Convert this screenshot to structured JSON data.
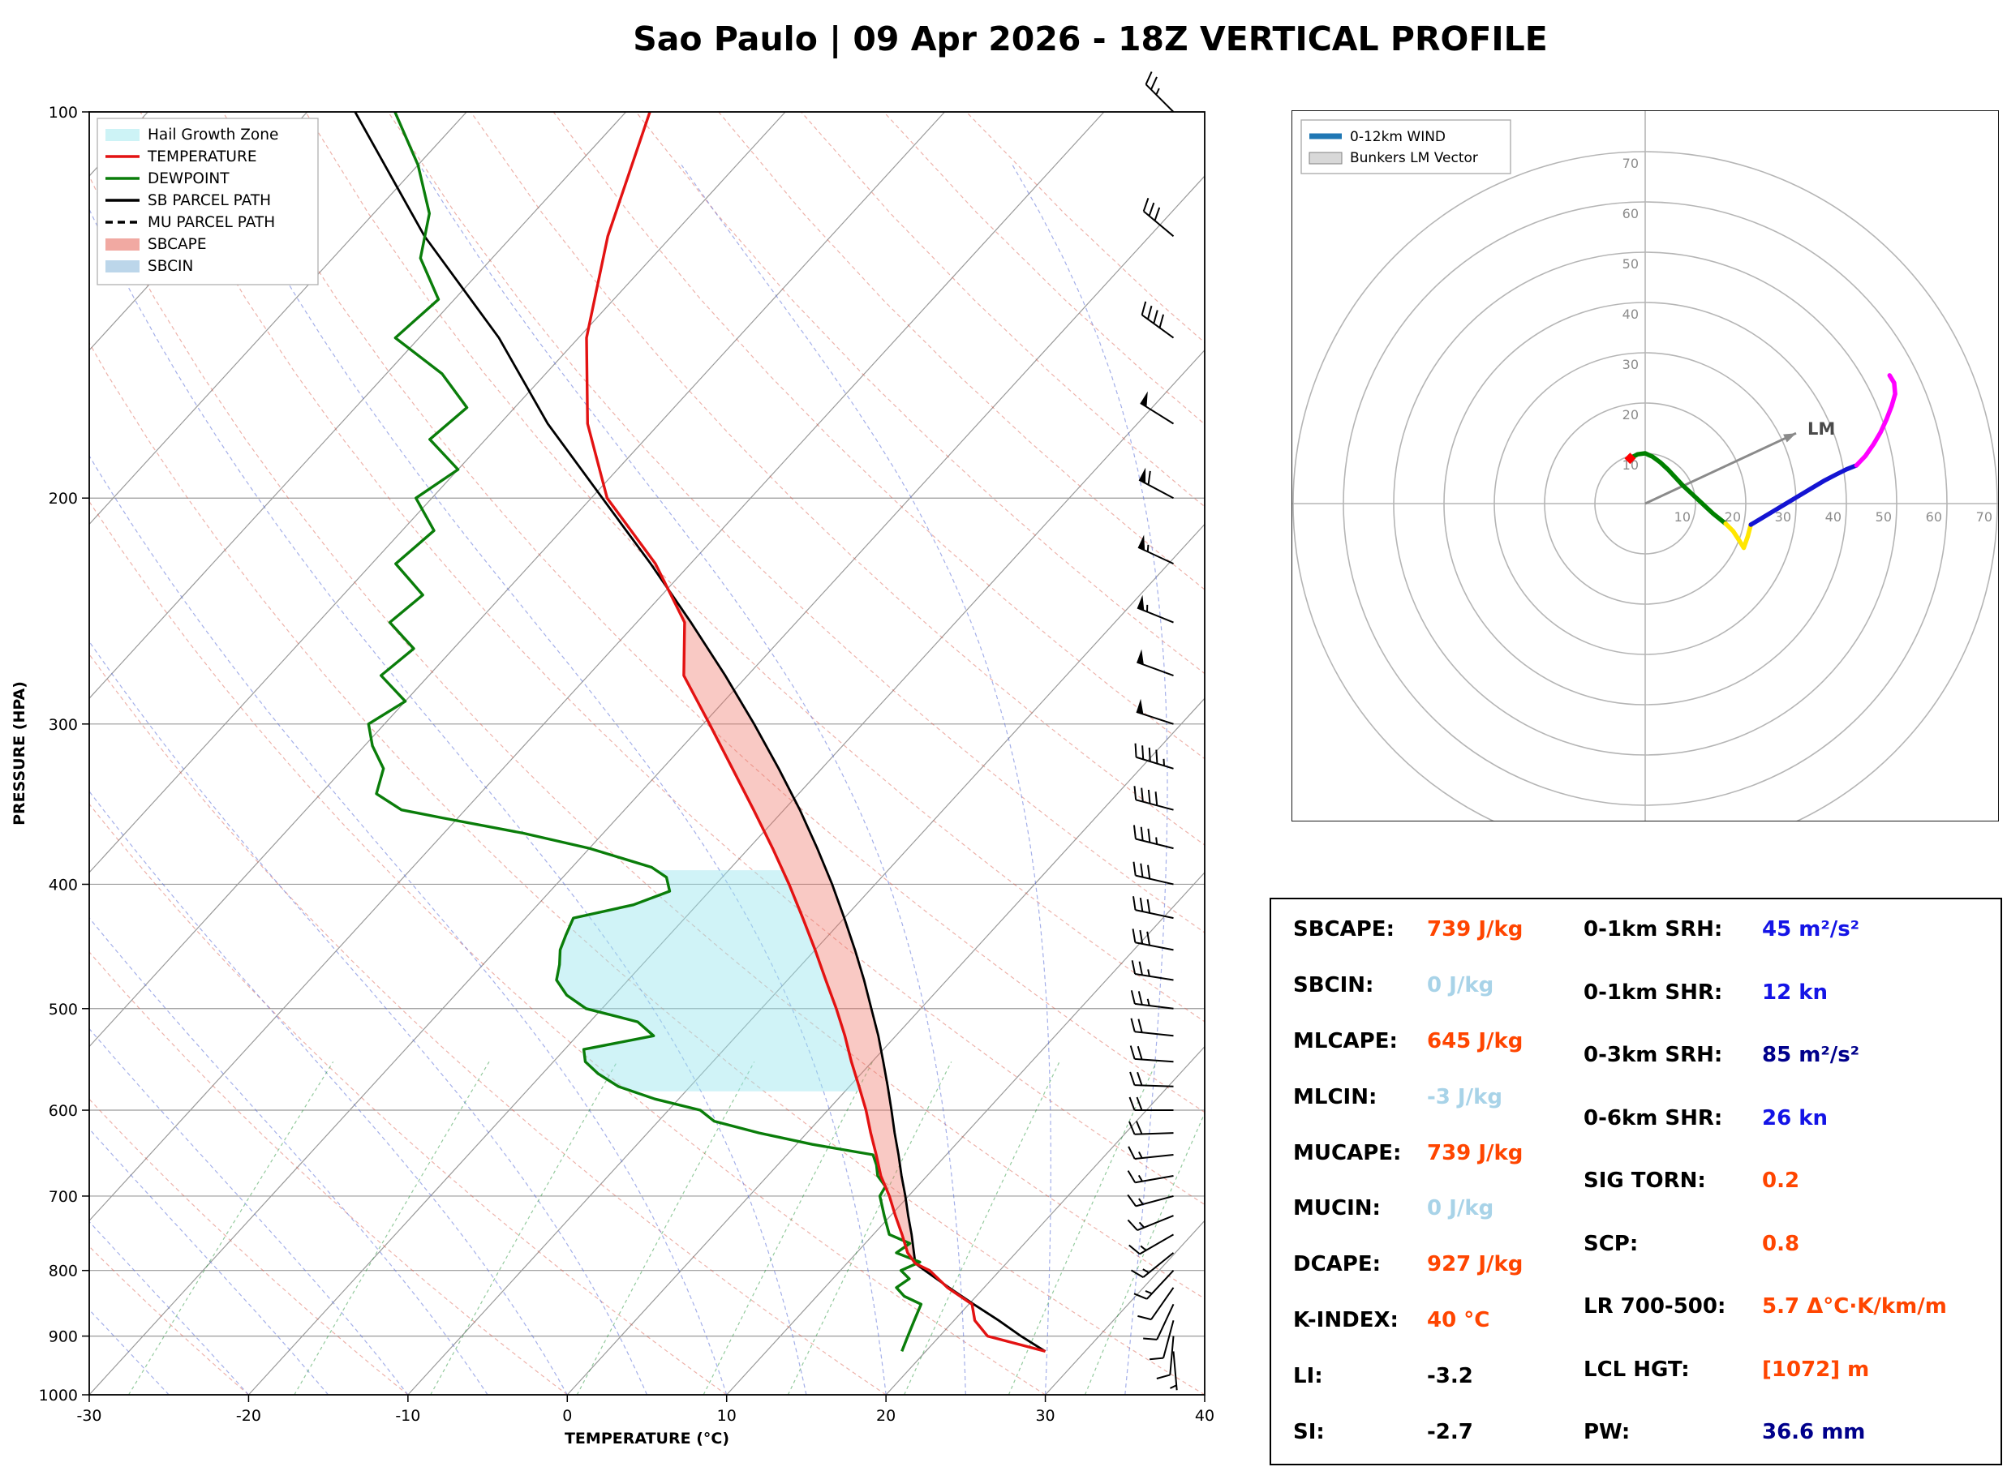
{
  "title": "Sao Paulo | 09 Apr 2026 - 18Z VERTICAL PROFILE",
  "skewt": {
    "xlabel": "TEMPERATURE (°C)",
    "ylabel": "PRESSURE (HPA)",
    "x_ticks": [
      -30,
      -20,
      -10,
      0,
      10,
      20,
      30,
      40
    ],
    "y_ticks": [
      100,
      200,
      300,
      400,
      500,
      600,
      700,
      800,
      900,
      1000
    ],
    "legend": [
      {
        "label": "Hail Growth Zone",
        "type": "patch",
        "color": "#cdf3f6"
      },
      {
        "label": "TEMPERATURE",
        "type": "line",
        "color": "#e31212"
      },
      {
        "label": "DEWPOINT",
        "type": "line",
        "color": "#0a7d0a"
      },
      {
        "label": "SB PARCEL PATH",
        "type": "line",
        "color": "#000000"
      },
      {
        "label": "MU PARCEL PATH",
        "type": "dashed",
        "color": "#000000"
      },
      {
        "label": "SBCAPE",
        "type": "patch",
        "color": "#f1a9a2"
      },
      {
        "label": "SBCIN",
        "type": "patch",
        "color": "#bcd6ea"
      }
    ]
  },
  "hodograph": {
    "legend": [
      {
        "label": "0-12km WIND",
        "type": "line",
        "color": "#1f77b4"
      },
      {
        "label": "Bunkers LM Vector",
        "type": "patch",
        "color": "#d8d8d8"
      }
    ],
    "ring_labels": [
      10,
      20,
      30,
      40,
      50,
      60,
      70
    ],
    "lm_label": "LM"
  },
  "stats": {
    "left": [
      {
        "label": "SBCAPE:",
        "value": "739 J/kg",
        "color": "#ff4500"
      },
      {
        "label": "SBCIN:",
        "value": "0 J/kg",
        "color": "#a8d3e8"
      },
      {
        "label": "MLCAPE:",
        "value": "645 J/kg",
        "color": "#ff4500"
      },
      {
        "label": "MLCIN:",
        "value": "-3 J/kg",
        "color": "#a8d3e8"
      },
      {
        "label": "MUCAPE:",
        "value": "739 J/kg",
        "color": "#ff4500"
      },
      {
        "label": "MUCIN:",
        "value": "0 J/kg",
        "color": "#a8d3e8"
      },
      {
        "label": "DCAPE:",
        "value": "927 J/kg",
        "color": "#ff4500"
      },
      {
        "label": "K-INDEX:",
        "value": "40 °C",
        "color": "#ff4500"
      },
      {
        "label": "LI:",
        "value": "-3.2",
        "color": "#000000"
      },
      {
        "label": "SI:",
        "value": "-2.7",
        "color": "#000000"
      }
    ],
    "right": [
      {
        "label": "0-1km SRH:",
        "value": "45 m²/s²",
        "color": "#1414e6"
      },
      {
        "label": "0-1km SHR:",
        "value": "12 kn",
        "color": "#1414e6"
      },
      {
        "label": "0-3km SRH:",
        "value": "85 m²/s²",
        "color": "#00008b"
      },
      {
        "label": "0-6km SHR:",
        "value": "26 kn",
        "color": "#1414e6"
      },
      {
        "label": "SIG TORN:",
        "value": "0.2",
        "color": "#ff4500"
      },
      {
        "label": "SCP:",
        "value": "0.8",
        "color": "#ff4500"
      },
      {
        "label": "LR 700-500:",
        "value": "5.7 Δ°C·K/km/m",
        "color": "#ff4500"
      },
      {
        "label": "LCL HGT:",
        "value": "[1072] m",
        "color": "#ff4500"
      },
      {
        "label": "PW:",
        "value": "36.6 mm",
        "color": "#00008b"
      }
    ]
  },
  "chart_data": [
    {
      "type": "line",
      "id": "skewt_sounding",
      "title": "Skew-T log-P vertical profile",
      "xlabel": "TEMPERATURE (°C)",
      "ylabel": "PRESSURE (HPA)",
      "xlim": [
        -30,
        40
      ],
      "pressure_lim": [
        100,
        1000
      ],
      "skew_factor": 32,
      "lcl_pressure": 790,
      "hail_zone_pressure_range": [
        580,
        390
      ],
      "temperature_c": {
        "pressure": [
          925,
          900,
          875,
          850,
          825,
          800,
          790,
          775,
          750,
          725,
          700,
          675,
          650,
          625,
          600,
          575,
          550,
          525,
          500,
          475,
          450,
          425,
          400,
          375,
          350,
          325,
          300,
          275,
          250,
          225,
          200,
          175,
          150,
          125,
          100
        ],
        "values": [
          27.5,
          23,
          21.3,
          20.2,
          17.7,
          15.6,
          14.3,
          13.2,
          11.8,
          10.3,
          8.8,
          7.1,
          5.6,
          4,
          2.4,
          0.6,
          -1.3,
          -3.2,
          -5.3,
          -7.6,
          -10,
          -12.6,
          -15.4,
          -18.5,
          -21.9,
          -25.6,
          -29.6,
          -34,
          -37,
          -42.2,
          -49,
          -54.5,
          -59.5,
          -64,
          -68.5
        ]
      },
      "dewpoint_c": {
        "pressure": [
          925,
          900,
          875,
          850,
          838,
          825,
          812,
          800,
          788,
          775,
          762,
          750,
          725,
          700,
          688,
          675,
          662,
          650,
          638,
          625,
          612,
          600,
          588,
          575,
          562,
          550,
          538,
          525,
          512,
          500,
          488,
          475,
          462,
          450,
          438,
          425,
          415,
          405,
          395,
          388,
          375,
          365,
          355,
          350,
          340,
          325,
          312,
          300,
          288,
          275,
          262,
          250,
          238,
          225,
          212,
          200,
          190,
          180,
          170,
          160,
          150,
          140,
          130,
          120,
          110,
          100
        ],
        "values": [
          18.5,
          18,
          17.5,
          17,
          15.5,
          14.5,
          14.8,
          13.8,
          14.5,
          12.5,
          12.8,
          11,
          9.6,
          8.2,
          8,
          6.9,
          6.2,
          5.4,
          1,
          -3,
          -6.5,
          -8,
          -11.5,
          -14.5,
          -16.5,
          -18,
          -18.8,
          -15.2,
          -17,
          -21,
          -23,
          -24.5,
          -25.2,
          -26,
          -26.5,
          -27,
          -24,
          -22.5,
          -23.5,
          -25,
          -30,
          -35,
          -41,
          -44,
          -46.5,
          -47.5,
          -49.5,
          -51,
          -50,
          -53,
          -52.5,
          -55.5,
          -55,
          -58.5,
          -58,
          -61,
          -60,
          -63.5,
          -63,
          -66.5,
          -71.5,
          -71,
          -74.5,
          -76.5,
          -80,
          -84.5
        ]
      },
      "sb_parcel_c": {
        "pressure": [
          925,
          900,
          875,
          850,
          825,
          800,
          790,
          775,
          750,
          725,
          700,
          675,
          650,
          625,
          600,
          575,
          550,
          525,
          500,
          475,
          450,
          425,
          400,
          375,
          350,
          325,
          300,
          275,
          250,
          225,
          200,
          175,
          150,
          125,
          100
        ],
        "values": [
          27.5,
          25.1,
          22.8,
          20.3,
          17.8,
          15.3,
          14.3,
          13.6,
          12.4,
          11.1,
          9.8,
          8.4,
          7,
          5.5,
          4,
          2.4,
          0.7,
          -1.1,
          -3.1,
          -5.2,
          -7.5,
          -10,
          -12.7,
          -15.7,
          -19,
          -22.7,
          -26.8,
          -31.4,
          -36.6,
          -42.5,
          -49.3,
          -57,
          -65,
          -75.5,
          -87
        ]
      },
      "mu_parcel_c": {
        "pressure": [
          925,
          900,
          875,
          850,
          825,
          800,
          790,
          775,
          750,
          725,
          700,
          675,
          650,
          625,
          600,
          575,
          550,
          525,
          500,
          475,
          450,
          425,
          400,
          375,
          350,
          325,
          300,
          275,
          250,
          225,
          200,
          175,
          150,
          125,
          100
        ],
        "values": [
          27.5,
          25.1,
          22.8,
          20.3,
          17.8,
          15.3,
          14.3,
          13.6,
          12.4,
          11.1,
          9.8,
          8.4,
          7,
          5.5,
          4,
          2.4,
          0.7,
          -1.1,
          -3.1,
          -5.2,
          -7.5,
          -10,
          -12.7,
          -15.7,
          -19,
          -22.7,
          -26.8,
          -31.4,
          -36.6,
          -42.5,
          -49.3,
          -57,
          -65,
          -75.5,
          -87
        ]
      },
      "winds_kn_dir": [
        [
          925,
          5,
          175
        ],
        [
          900,
          8,
          185
        ],
        [
          875,
          10,
          195
        ],
        [
          850,
          12,
          205
        ],
        [
          825,
          12,
          215
        ],
        [
          800,
          13,
          223
        ],
        [
          775,
          13,
          231
        ],
        [
          750,
          14,
          240
        ],
        [
          725,
          15,
          248
        ],
        [
          700,
          15,
          255
        ],
        [
          675,
          16,
          260
        ],
        [
          650,
          17,
          264
        ],
        [
          625,
          18,
          268
        ],
        [
          600,
          19,
          270
        ],
        [
          575,
          20,
          272
        ],
        [
          550,
          21,
          274
        ],
        [
          525,
          22,
          276
        ],
        [
          500,
          24,
          277
        ],
        [
          475,
          26,
          279
        ],
        [
          450,
          28,
          281
        ],
        [
          425,
          30,
          282
        ],
        [
          400,
          32,
          283
        ],
        [
          375,
          35,
          284
        ],
        [
          350,
          38,
          285
        ],
        [
          325,
          45,
          287
        ],
        [
          300,
          50,
          288
        ],
        [
          275,
          50,
          290
        ],
        [
          250,
          54,
          292
        ],
        [
          225,
          56,
          295
        ],
        [
          200,
          58,
          298
        ],
        [
          175,
          48,
          302
        ],
        [
          150,
          40,
          306
        ],
        [
          125,
          32,
          310
        ],
        [
          100,
          27,
          315
        ]
      ]
    },
    {
      "type": "line",
      "id": "hodograph",
      "units": "kn",
      "rings": [
        10,
        20,
        30,
        40,
        50,
        60,
        70
      ],
      "segments": [
        {
          "color": "#008000",
          "points": [
            [
              -3,
              9
            ],
            [
              -1.5,
              9.8
            ],
            [
              0,
              10
            ],
            [
              1.5,
              9.3
            ],
            [
              3,
              8.2
            ],
            [
              4.5,
              6.8
            ],
            [
              6,
              5.2
            ],
            [
              7.5,
              3.6
            ],
            [
              9,
              2.2
            ],
            [
              10.5,
              0.8
            ],
            [
              12,
              -0.6
            ],
            [
              13.5,
              -2
            ],
            [
              15,
              -3.2
            ],
            [
              16,
              -4
            ]
          ]
        },
        {
          "color": "#ffe600",
          "points": [
            [
              16,
              -4
            ],
            [
              17.5,
              -5.5
            ],
            [
              18.8,
              -7.5
            ],
            [
              19.6,
              -8.8
            ],
            [
              20.4,
              -6.5
            ],
            [
              21,
              -4.2
            ]
          ]
        },
        {
          "color": "#1414d2",
          "points": [
            [
              21,
              -4.2
            ],
            [
              23,
              -3
            ],
            [
              25.5,
              -1.5
            ],
            [
              28,
              0
            ],
            [
              30.5,
              1.5
            ],
            [
              33,
              3
            ],
            [
              35.5,
              4.5
            ],
            [
              38,
              5.8
            ],
            [
              40,
              6.8
            ],
            [
              42,
              7.6
            ]
          ]
        },
        {
          "color": "#ff00ff",
          "points": [
            [
              42,
              7.6
            ],
            [
              43.8,
              9.5
            ],
            [
              45.4,
              11.8
            ],
            [
              46.8,
              14.2
            ],
            [
              48,
              16.8
            ],
            [
              49,
              19.4
            ],
            [
              49.7,
              21.8
            ],
            [
              49.5,
              24
            ],
            [
              48.6,
              25.5
            ]
          ]
        }
      ],
      "start_marker": {
        "u": -3,
        "v": 9,
        "color": "#ff0000"
      },
      "lm_vector": {
        "u": 30,
        "v": 14,
        "label": "LM"
      }
    }
  ]
}
